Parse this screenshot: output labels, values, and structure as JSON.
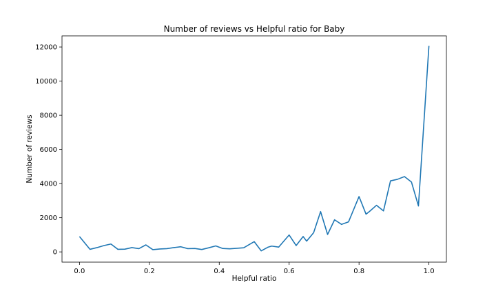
{
  "chart_data": {
    "type": "line",
    "title": "Number of reviews vs Helpful ratio for Baby",
    "xlabel": "Helpful ratio",
    "ylabel": "Number of reviews",
    "xlim": [
      -0.05,
      1.05
    ],
    "ylim": [
      -600,
      12650
    ],
    "xticks": [
      0.0,
      0.2,
      0.4,
      0.6,
      0.8,
      1.0
    ],
    "xtick_labels": [
      "0.0",
      "0.2",
      "0.4",
      "0.6",
      "0.8",
      "1.0"
    ],
    "yticks": [
      0,
      2000,
      4000,
      6000,
      8000,
      10000,
      12000
    ],
    "ytick_labels": [
      "0",
      "2000",
      "4000",
      "6000",
      "8000",
      "10000",
      "12000"
    ],
    "grid": false,
    "line_color": "#1f77b4",
    "series": [
      {
        "x": [
          0.0,
          0.03,
          0.05,
          0.07,
          0.09,
          0.11,
          0.13,
          0.15,
          0.17,
          0.19,
          0.21,
          0.23,
          0.25,
          0.27,
          0.29,
          0.31,
          0.33,
          0.35,
          0.37,
          0.39,
          0.41,
          0.43,
          0.45,
          0.47,
          0.5,
          0.52,
          0.54,
          0.55,
          0.57,
          0.6,
          0.62,
          0.64,
          0.65,
          0.67,
          0.69,
          0.71,
          0.73,
          0.75,
          0.77,
          0.8,
          0.82,
          0.83,
          0.85,
          0.87,
          0.89,
          0.91,
          0.93,
          0.95,
          0.97,
          1.0
        ],
        "values": [
          900,
          150,
          250,
          370,
          460,
          150,
          160,
          250,
          190,
          410,
          130,
          170,
          190,
          250,
          300,
          190,
          200,
          140,
          240,
          350,
          200,
          180,
          210,
          240,
          600,
          60,
          280,
          340,
          280,
          990,
          370,
          900,
          630,
          1120,
          2360,
          1020,
          1880,
          1610,
          1760,
          3240,
          2210,
          2370,
          2730,
          2400,
          4160,
          4250,
          4410,
          4090,
          2690,
          12060
        ]
      }
    ]
  }
}
